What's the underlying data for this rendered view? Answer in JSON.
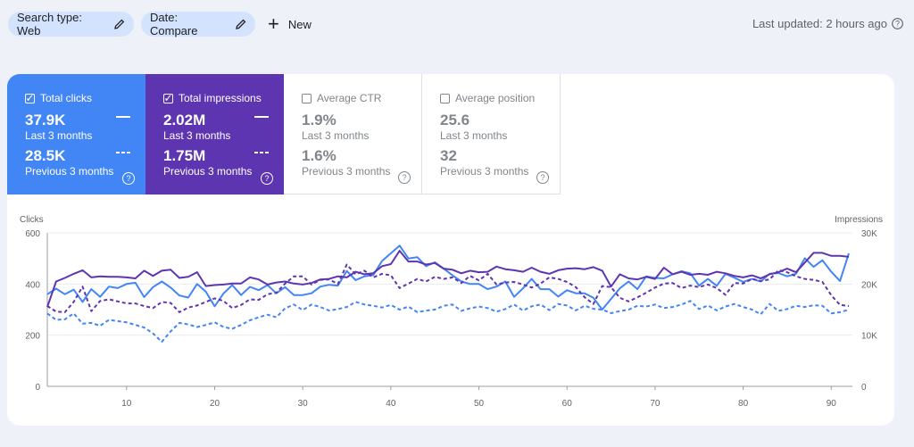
{
  "filters": {
    "search_type": "Search type: Web",
    "date": "Date: Compare",
    "new_label": "New"
  },
  "status": {
    "last_updated": "Last updated: 2 hours ago"
  },
  "metrics": [
    {
      "title": "Total clicks",
      "current": "37.9K",
      "current_period": "Last 3 months",
      "previous": "28.5K",
      "previous_period": "Previous 3 months",
      "checked": true,
      "color": "#4285f4"
    },
    {
      "title": "Total impressions",
      "current": "2.02M",
      "current_period": "Last 3 months",
      "previous": "1.75M",
      "previous_period": "Previous 3 months",
      "checked": true,
      "color": "#5e35b1"
    },
    {
      "title": "Average CTR",
      "current": "1.9%",
      "current_period": "Last 3 months",
      "previous": "1.6%",
      "previous_period": "Previous 3 months",
      "checked": false
    },
    {
      "title": "Average position",
      "current": "25.6",
      "current_period": "Last 3 months",
      "previous": "32",
      "previous_period": "Previous 3 months",
      "checked": false
    }
  ],
  "chart_data": {
    "type": "line",
    "left_axis_label": "Clicks",
    "right_axis_label": "Impressions",
    "left_ylim": [
      0,
      600
    ],
    "right_ylim": [
      0,
      30000
    ],
    "left_ticks": [
      "0",
      "200",
      "400",
      "600"
    ],
    "right_ticks": [
      "0",
      "10K",
      "20K",
      "30K"
    ],
    "x_ticks": [
      10,
      20,
      30,
      40,
      50,
      60,
      70,
      80,
      90
    ],
    "x_range": [
      1,
      92
    ],
    "grid": true,
    "series": [
      {
        "axis": "left",
        "style": "solid",
        "color": "#4285f4",
        "values": [
          360,
          382,
          360,
          378,
          330,
          380,
          350,
          390,
          384,
          400,
          405,
          349,
          388,
          410,
          386,
          355,
          347,
          400,
          370,
          313,
          363,
          396,
          357,
          389,
          376,
          396,
          364,
          388,
          357,
          357,
          364,
          390,
          397,
          394,
          451,
          415,
          430,
          435,
          490,
          520,
          550,
          500,
          505,
          470,
          485,
          460,
          434,
          410,
          400,
          400,
          380,
          390,
          410,
          350,
          383,
          420,
          380,
          380,
          351,
          376,
          364,
          364,
          346,
          300,
          342,
          383,
          410,
          380,
          430,
          424,
          422,
          438,
          450,
          442,
          394,
          420,
          393,
          440,
          425,
          408,
          420,
          410,
          440,
          443,
          430,
          440,
          501,
          467,
          493,
          448,
          412,
          520
        ]
      },
      {
        "axis": "right",
        "style": "solid",
        "color": "#5e35b1",
        "values": [
          15500,
          20500,
          21200,
          22000,
          22700,
          21300,
          21500,
          21400,
          21400,
          21300,
          21100,
          22600,
          21600,
          22600,
          22800,
          21200,
          21400,
          22300,
          19600,
          19800,
          19900,
          20100,
          20100,
          21300,
          20900,
          19900,
          20300,
          20500,
          20100,
          19900,
          20200,
          20900,
          21000,
          21500,
          21300,
          22400,
          21900,
          22100,
          23500,
          23900,
          26500,
          24400,
          24400,
          23800,
          24100,
          23000,
          22800,
          22100,
          22600,
          22300,
          22400,
          23400,
          22900,
          22700,
          22400,
          23200,
          22400,
          22000,
          22700,
          23000,
          23100,
          22900,
          23300,
          22600,
          19500,
          21900,
          21100,
          20900,
          21400,
          21000,
          23200,
          21900,
          22400,
          21800,
          22000,
          21800,
          22400,
          22100,
          21600,
          21300,
          21700,
          21100,
          21900,
          22300,
          23000,
          22300,
          24200,
          26100,
          26100,
          25500,
          25500,
          25300
        ]
      },
      {
        "axis": "left",
        "style": "dashed",
        "color": "#4285f4",
        "values": [
          285,
          260,
          262,
          285,
          245,
          248,
          237,
          260,
          255,
          250,
          240,
          230,
          207,
          174,
          215,
          248,
          242,
          232,
          240,
          250,
          232,
          225,
          240,
          258,
          270,
          280,
          270,
          305,
          320,
          298,
          320,
          310,
          296,
          302,
          310,
          330,
          320,
          315,
          308,
          318,
          300,
          312,
          290,
          296,
          300,
          315,
          320,
          295,
          305,
          312,
          306,
          292,
          302,
          320,
          296,
          313,
          320,
          298,
          322,
          316,
          297,
          315,
          303,
          300,
          286,
          294,
          300,
          315,
          312,
          320,
          306,
          310,
          320,
          334,
          302,
          316,
          297,
          312,
          322,
          310,
          300,
          282,
          322,
          295,
          302,
          315,
          310,
          317,
          315,
          285,
          290,
          300
        ]
      },
      {
        "axis": "right",
        "style": "dashed",
        "color": "#5e35b1",
        "values": [
          15700,
          14600,
          14500,
          16500,
          19500,
          14700,
          16700,
          17000,
          16600,
          16200,
          16200,
          15700,
          15300,
          16500,
          16300,
          14500,
          15400,
          15800,
          16500,
          17200,
          16700,
          15300,
          15900,
          17000,
          16900,
          18000,
          18300,
          20100,
          21500,
          21500,
          19900,
          20800,
          20900,
          20000,
          23800,
          21900,
          22600,
          21300,
          22000,
          21700,
          19200,
          20100,
          21000,
          20500,
          21400,
          21000,
          21300,
          20200,
          21600,
          20700,
          22000,
          19900,
          20300,
          20400,
          19900,
          19300,
          20100,
          21300,
          21000,
          20400,
          19400,
          17400,
          16100,
          19600,
          19400,
          17300,
          16600,
          17400,
          18300,
          19300,
          20100,
          20200,
          19200,
          19700,
          19400,
          19900,
          19200,
          17900,
          20200,
          20100,
          21000,
          20600,
          20900,
          22700,
          22300,
          21500,
          21000,
          20800,
          20400,
          17800,
          15900,
          15700
        ]
      }
    ]
  }
}
